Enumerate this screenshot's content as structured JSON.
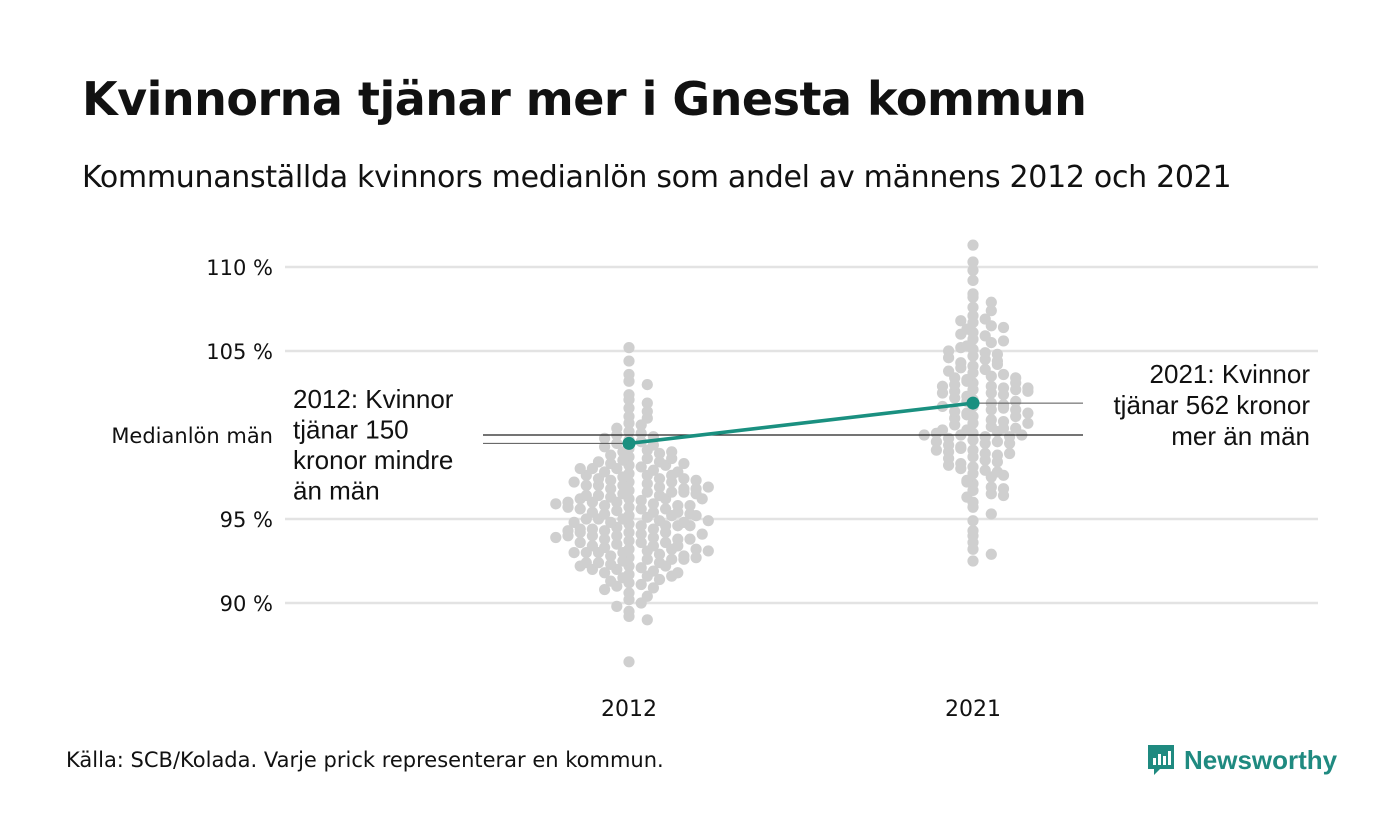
{
  "title": "Kvinnorna tjänar mer i Gnesta kommun",
  "subtitle": "Kommunanställda kvinnors medianlön som andel av männens 2012 och 2021",
  "source": "Källa: SCB/Kolada. Varje prick representerar en kommun.",
  "brand": {
    "name": "Newsworthy",
    "icon": "newsworthy-logo-icon"
  },
  "colors": {
    "dots": "#cfcfcf",
    "highlight": "#1a9080",
    "grid": "#e3e3e3",
    "reference": "#222222",
    "brand": "#1f8a80"
  },
  "chart_data": {
    "type": "scatter",
    "subtype": "beeswarm",
    "categories": [
      "2012",
      "2021"
    ],
    "y_ticks": [
      {
        "value": 90,
        "label": "90 %"
      },
      {
        "value": 95,
        "label": "95 %"
      },
      {
        "value": 100,
        "label": "Medianlön män"
      },
      {
        "value": 105,
        "label": "105 %"
      },
      {
        "value": 110,
        "label": "110 %"
      }
    ],
    "ylim": [
      86,
      112
    ],
    "grid": true,
    "reference_line": {
      "value": 100,
      "label": "Medianlön män"
    },
    "highlight": {
      "name": "Gnesta",
      "points": [
        {
          "x": "2012",
          "y": 99.5
        },
        {
          "x": "2021",
          "y": 101.9
        }
      ]
    },
    "annotations": [
      {
        "x": "2012",
        "lines": [
          "2012: Kvinnor",
          "tjänar 150",
          "kronor mindre",
          "än män"
        ]
      },
      {
        "x": "2021",
        "lines": [
          "2021: Kvinnor",
          "tjänar 562 kronor",
          "mer än män"
        ]
      }
    ],
    "distributions": [
      {
        "x": "2012",
        "values": [
          105.2,
          104.4,
          103.6,
          103.2,
          103.0,
          102.4,
          102.1,
          101.9,
          101.6,
          101.4,
          101.1,
          101.0,
          100.7,
          100.6,
          100.4,
          100.2,
          100.1,
          100.0,
          99.9,
          99.8,
          99.7,
          99.6,
          99.5,
          99.4,
          99.3,
          99.2,
          99.1,
          99.0,
          98.9,
          98.8,
          98.7,
          98.6,
          98.5,
          98.4,
          98.3,
          98.2,
          98.1,
          98.0,
          97.9,
          97.8,
          97.7,
          97.6,
          97.5,
          97.4,
          97.3,
          97.2,
          97.1,
          97.0,
          96.9,
          96.8,
          96.7,
          96.6,
          96.5,
          96.4,
          96.3,
          96.2,
          96.1,
          96.0,
          95.9,
          95.8,
          95.7,
          95.6,
          95.5,
          95.4,
          95.3,
          95.2,
          95.1,
          95.0,
          94.9,
          94.8,
          94.7,
          94.6,
          94.5,
          94.4,
          94.3,
          94.2,
          94.1,
          94.0,
          93.9,
          93.8,
          93.7,
          93.6,
          93.5,
          93.4,
          93.3,
          93.2,
          93.1,
          93.0,
          92.9,
          92.8,
          92.7,
          92.6,
          92.5,
          92.4,
          92.3,
          92.2,
          92.1,
          92.0,
          91.9,
          91.8,
          91.7,
          91.6,
          91.5,
          91.4,
          91.3,
          91.2,
          91.1,
          91.0,
          90.9,
          90.8,
          90.6,
          90.4,
          90.2,
          90.0,
          89.8,
          89.5,
          89.2,
          89.0,
          86.5,
          98.6,
          98.4,
          98.2,
          98.0,
          97.8,
          97.6,
          97.4,
          97.2,
          97.0,
          96.8,
          96.6,
          96.4,
          96.2,
          96.0,
          95.8,
          95.6,
          95.4,
          95.2,
          95.0,
          94.8,
          94.6,
          94.4,
          94.2,
          94.0,
          93.8,
          93.6,
          93.4,
          93.2,
          93.0,
          92.8,
          92.6,
          92.4,
          92.2,
          92.0,
          91.8,
          91.6,
          97.4,
          97.0,
          96.6,
          96.2,
          95.8,
          95.4,
          95.0,
          94.6,
          94.2,
          93.8,
          93.4,
          93.0,
          92.6,
          92.2,
          96.8,
          96.0,
          95.2,
          94.4,
          93.6,
          97.2,
          95.6,
          94.0,
          92.4,
          98.0,
          96.4,
          94.8,
          93.2,
          99.0,
          97.6,
          96.2,
          94.6,
          93.0,
          95.9,
          94.1,
          98.3,
          96.9,
          95.3,
          93.9,
          92.7,
          97.3,
          95.7,
          94.3,
          93.1,
          96.5,
          94.9
        ]
      },
      {
        "x": "2021",
        "values": [
          111.3,
          110.3,
          109.8,
          109.2,
          108.4,
          108.2,
          107.9,
          107.6,
          107.4,
          107.1,
          106.9,
          106.7,
          106.5,
          106.3,
          106.1,
          105.9,
          105.7,
          105.5,
          105.3,
          105.1,
          104.9,
          104.7,
          104.5,
          104.3,
          104.1,
          103.9,
          103.7,
          103.5,
          103.3,
          103.1,
          102.9,
          102.7,
          102.5,
          102.3,
          102.1,
          101.9,
          101.7,
          101.5,
          101.3,
          101.1,
          100.9,
          100.7,
          100.5,
          100.3,
          100.1,
          99.9,
          99.7,
          99.5,
          99.3,
          99.1,
          98.9,
          98.7,
          98.5,
          98.3,
          98.1,
          97.9,
          97.7,
          97.5,
          97.3,
          97.1,
          96.9,
          96.7,
          96.5,
          96.3,
          96.0,
          95.7,
          95.3,
          94.9,
          94.3,
          94.0,
          93.6,
          93.2,
          92.9,
          92.5,
          106.8,
          106.4,
          106.0,
          105.6,
          105.2,
          104.8,
          104.4,
          104.0,
          103.6,
          103.2,
          102.8,
          102.4,
          102.0,
          101.6,
          101.2,
          100.8,
          100.4,
          100.0,
          99.6,
          99.2,
          98.8,
          98.4,
          98.0,
          97.6,
          97.2,
          96.8,
          96.4,
          105.0,
          104.2,
          103.4,
          102.6,
          101.8,
          101.0,
          100.2,
          99.4,
          98.6,
          97.8,
          103.0,
          102.2,
          101.4,
          100.6,
          99.8,
          99.0,
          98.2,
          104.6,
          103.8,
          102.0,
          100.4,
          98.9,
          102.7,
          101.5,
          100.3,
          99.1,
          103.1,
          101.1,
          99.5,
          102.5,
          100.7,
          99.9,
          102.9,
          101.7,
          100.1,
          101.3,
          102.6,
          100.0,
          102.8,
          100.0,
          103.4,
          99.6
        ]
      }
    ]
  }
}
